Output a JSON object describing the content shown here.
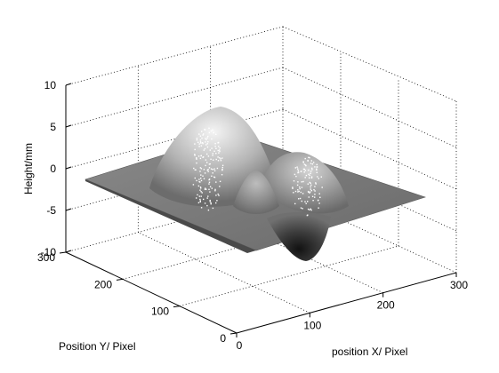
{
  "chart_data": {
    "type": "surface3d",
    "title": "",
    "xlabel": "position X/ Pixel",
    "ylabel": "Position Y/ Pixel",
    "zlabel": "Height/mm",
    "xlim": [
      0,
      300
    ],
    "ylim": [
      0,
      300
    ],
    "zlim": [
      -10,
      10
    ],
    "xticks": [
      "0",
      "100",
      "200",
      "300"
    ],
    "yticks": [
      "0",
      "100",
      "200",
      "300"
    ],
    "zticks": [
      "-10",
      "-5",
      "0",
      "5",
      "10"
    ],
    "grid": true,
    "colormap": "gray",
    "surface_features": [
      {
        "kind": "peak",
        "x": 100,
        "y": 200,
        "height": 7
      },
      {
        "kind": "peak",
        "x": 200,
        "y": 220,
        "height": 3
      },
      {
        "kind": "peak",
        "x": 160,
        "y": 120,
        "height": 2.5
      },
      {
        "kind": "valley",
        "x": 200,
        "y": 60,
        "height": -8.5
      }
    ]
  }
}
